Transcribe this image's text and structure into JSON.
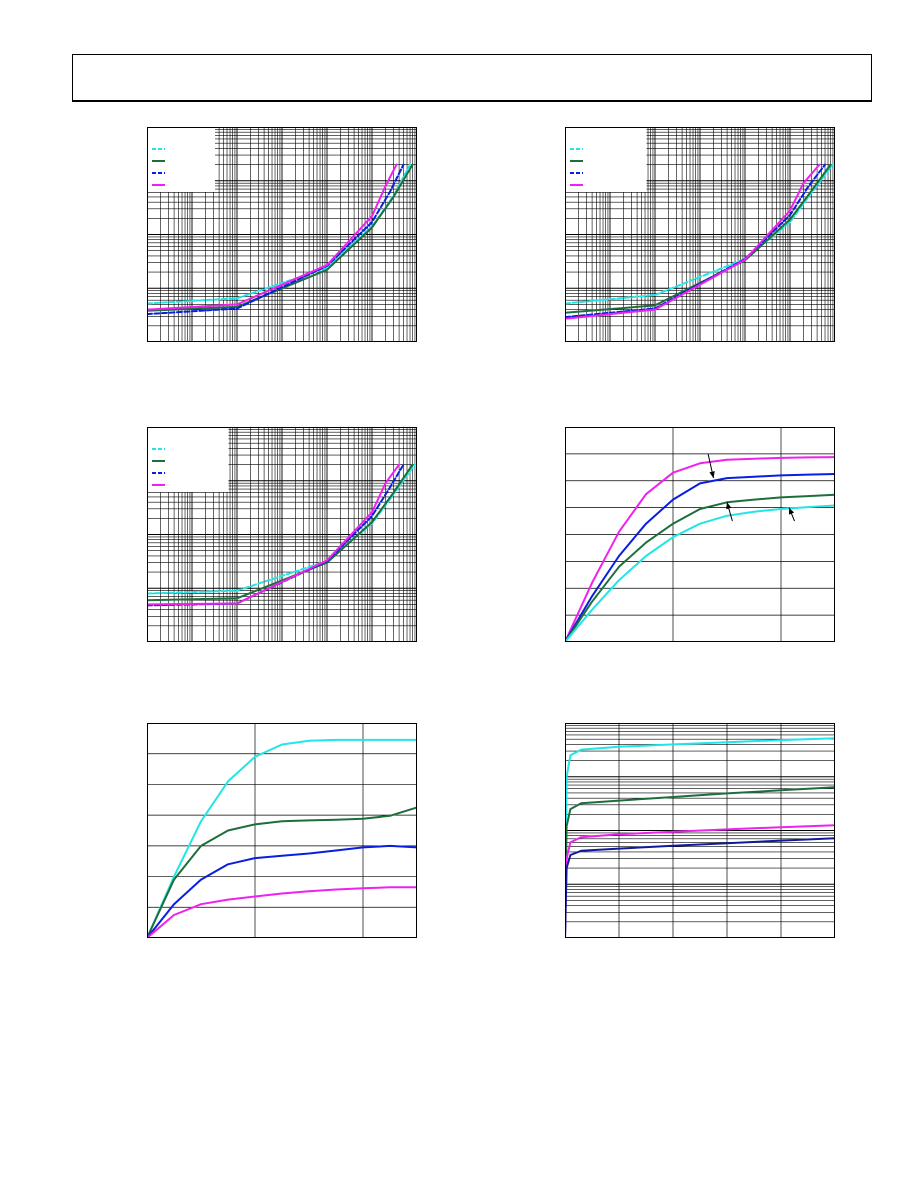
{
  "colors": {
    "cyan": "#22e5e5",
    "green": "#1e6e3c",
    "blue": "#0a1ee0",
    "magenta": "#ee22ee",
    "navy": "#101a9a",
    "grid": "#000000"
  },
  "header": {
    "text": ""
  },
  "chart_data": [
    {
      "id": "p1",
      "type": "line",
      "xscale": "log",
      "yscale": "log",
      "xlim": [
        1,
        1000000
      ],
      "ylim": [
        1,
        10000
      ],
      "grid": true,
      "legend": "top-left",
      "legend_box": [
        0.25,
        0.3
      ],
      "series": [
        {
          "color": "cyan",
          "dash": true,
          "x": [
            1,
            100,
            10000,
            100000,
            300000,
            700000
          ],
          "y": [
            5.2,
            6.5,
            24,
            140,
            520,
            2000
          ]
        },
        {
          "color": "green",
          "dash": false,
          "x": [
            1,
            100,
            10000,
            100000,
            300000,
            800000
          ],
          "y": [
            3.8,
            4.5,
            22,
            135,
            500,
            2000
          ]
        },
        {
          "color": "blue",
          "dash": true,
          "x": [
            1,
            100,
            10000,
            100000,
            250000,
            500000
          ],
          "y": [
            3.3,
            4.2,
            26,
            170,
            620,
            2000
          ]
        },
        {
          "color": "magenta",
          "dash": false,
          "x": [
            1,
            100,
            10000,
            100000,
            200000,
            350000
          ],
          "y": [
            4,
            5,
            27,
            220,
            800,
            2000
          ]
        }
      ]
    },
    {
      "id": "p2",
      "type": "line",
      "xscale": "log",
      "yscale": "log",
      "xlim": [
        1,
        1000000
      ],
      "ylim": [
        1,
        10000
      ],
      "grid": true,
      "legend": "top-left",
      "legend_box": [
        0.3,
        0.3
      ],
      "series": [
        {
          "color": "cyan",
          "dash": true,
          "x": [
            1,
            100,
            10000,
            100000,
            300000,
            900000
          ],
          "y": [
            5.2,
            7.5,
            35,
            170,
            600,
            2000
          ]
        },
        {
          "color": "green",
          "dash": false,
          "x": [
            1,
            100,
            10000,
            100000,
            300000,
            800000
          ],
          "y": [
            3.5,
            4.8,
            33,
            190,
            650,
            2000
          ]
        },
        {
          "color": "blue",
          "dash": true,
          "x": [
            1,
            100,
            10000,
            100000,
            250000,
            600000
          ],
          "y": [
            2.9,
            4.2,
            35,
            230,
            760,
            2000
          ]
        },
        {
          "color": "magenta",
          "dash": false,
          "x": [
            1,
            100,
            10000,
            100000,
            200000,
            450000
          ],
          "y": [
            2.7,
            4,
            34,
            280,
            900,
            2000
          ]
        }
      ]
    },
    {
      "id": "p3",
      "type": "line",
      "xscale": "log",
      "yscale": "log",
      "xlim": [
        1,
        1000000
      ],
      "ylim": [
        1,
        10000
      ],
      "grid": true,
      "legend": "top-left",
      "legend_box": [
        0.3,
        0.3
      ],
      "series": [
        {
          "color": "cyan",
          "dash": true,
          "x": [
            1,
            100,
            10000,
            100000,
            300000,
            900000
          ],
          "y": [
            8,
            9,
            32,
            160,
            560,
            2000
          ]
        },
        {
          "color": "green",
          "dash": false,
          "x": [
            1,
            100,
            10000,
            100000,
            300000,
            800000
          ],
          "y": [
            6,
            6.5,
            30,
            170,
            600,
            2000
          ]
        },
        {
          "color": "blue",
          "dash": true,
          "x": [
            1,
            100,
            10000,
            100000,
            250000,
            500000
          ],
          "y": [
            4.8,
            5.2,
            32,
            220,
            750,
            2000
          ]
        },
        {
          "color": "magenta",
          "dash": false,
          "x": [
            1,
            100,
            10000,
            100000,
            200000,
            400000
          ],
          "y": [
            5,
            5.2,
            33,
            260,
            900,
            2000
          ]
        }
      ]
    },
    {
      "id": "p4",
      "type": "line",
      "xscale": "linear",
      "yscale": "linear",
      "xlim": [
        0,
        100
      ],
      "ylim": [
        0,
        8
      ],
      "xgrid": [
        40,
        80
      ],
      "ygrid": [
        1,
        2,
        3,
        4,
        5,
        6,
        7
      ],
      "grid": true,
      "series": [
        {
          "color": "magenta",
          "x": [
            0,
            10,
            20,
            30,
            40,
            50,
            60,
            70,
            80,
            90,
            100
          ],
          "y": [
            0,
            2.2,
            4.1,
            5.5,
            6.3,
            6.65,
            6.78,
            6.82,
            6.85,
            6.87,
            6.88
          ]
        },
        {
          "color": "blue",
          "x": [
            0,
            10,
            20,
            30,
            40,
            50,
            60,
            70,
            80,
            90,
            100
          ],
          "y": [
            0,
            1.7,
            3.2,
            4.4,
            5.3,
            5.9,
            6.1,
            6.15,
            6.2,
            6.23,
            6.25
          ]
        },
        {
          "color": "green",
          "x": [
            0,
            10,
            20,
            30,
            40,
            50,
            60,
            70,
            80,
            90,
            100
          ],
          "y": [
            0,
            1.5,
            2.8,
            3.7,
            4.4,
            4.95,
            5.2,
            5.3,
            5.38,
            5.43,
            5.48
          ]
        },
        {
          "color": "cyan",
          "x": [
            0,
            10,
            20,
            30,
            40,
            50,
            60,
            70,
            80,
            90,
            100
          ],
          "y": [
            0,
            1.2,
            2.3,
            3.2,
            3.9,
            4.4,
            4.7,
            4.85,
            4.95,
            5.02,
            5.08
          ]
        }
      ],
      "arrows": [
        {
          "from": [
            53,
            7.0
          ],
          "to": [
            55,
            6.1
          ]
        },
        {
          "from": [
            62,
            4.5
          ],
          "to": [
            60,
            5.2
          ]
        },
        {
          "from": [
            85,
            4.5
          ],
          "to": [
            83,
            5.0
          ]
        }
      ]
    },
    {
      "id": "p5",
      "type": "line",
      "xscale": "linear",
      "yscale": "linear",
      "xlim": [
        0,
        100
      ],
      "ylim": [
        0,
        7
      ],
      "xgrid": [
        40,
        80
      ],
      "ygrid": [
        1,
        2,
        3,
        4,
        5,
        6
      ],
      "grid": true,
      "series": [
        {
          "color": "cyan",
          "x": [
            0,
            10,
            20,
            30,
            40,
            50,
            60,
            70,
            80,
            90,
            100
          ],
          "y": [
            0,
            2.0,
            3.8,
            5.1,
            5.9,
            6.3,
            6.42,
            6.45,
            6.45,
            6.45,
            6.45
          ]
        },
        {
          "color": "green",
          "x": [
            0,
            10,
            20,
            30,
            40,
            50,
            60,
            70,
            80,
            90,
            100
          ],
          "y": [
            0,
            1.9,
            3.0,
            3.5,
            3.7,
            3.8,
            3.83,
            3.85,
            3.88,
            3.98,
            4.25
          ]
        },
        {
          "color": "blue",
          "x": [
            0,
            10,
            20,
            30,
            40,
            50,
            60,
            70,
            80,
            90,
            100
          ],
          "y": [
            0,
            1.1,
            1.9,
            2.4,
            2.6,
            2.68,
            2.75,
            2.85,
            2.95,
            3.0,
            2.95
          ]
        },
        {
          "color": "magenta",
          "x": [
            0,
            10,
            20,
            30,
            40,
            50,
            60,
            70,
            80,
            90,
            100
          ],
          "y": [
            0,
            0.75,
            1.1,
            1.25,
            1.35,
            1.45,
            1.52,
            1.58,
            1.62,
            1.65,
            1.65
          ]
        }
      ]
    },
    {
      "id": "p6",
      "type": "line",
      "xscale": "linear",
      "yscale": "log",
      "xlim": [
        0,
        50
      ],
      "ylim": [
        0.01,
        100
      ],
      "xgrid": [
        10,
        20,
        30,
        40
      ],
      "grid": true,
      "series": [
        {
          "color": "cyan",
          "x": [
            0,
            0.3,
            1,
            3,
            10,
            20,
            30,
            40,
            50
          ],
          "y": [
            0.01,
            10,
            25,
            32,
            36,
            40,
            44,
            48,
            52
          ]
        },
        {
          "color": "green",
          "x": [
            0,
            0.3,
            1,
            3,
            10,
            20,
            30,
            40,
            50
          ],
          "y": [
            0.01,
            1.2,
            2.5,
            3.2,
            3.6,
            4.2,
            4.9,
            5.6,
            6.4
          ]
        },
        {
          "color": "magenta",
          "x": [
            0,
            0.3,
            1,
            3,
            10,
            20,
            30,
            40,
            50
          ],
          "y": [
            0.01,
            0.3,
            0.6,
            0.75,
            0.85,
            0.95,
            1.05,
            1.15,
            1.25
          ]
        },
        {
          "color": "navy",
          "x": [
            0,
            0.3,
            1,
            3,
            10,
            20,
            30,
            40,
            50
          ],
          "y": [
            0.01,
            0.2,
            0.35,
            0.42,
            0.46,
            0.52,
            0.58,
            0.65,
            0.72
          ]
        }
      ]
    }
  ]
}
